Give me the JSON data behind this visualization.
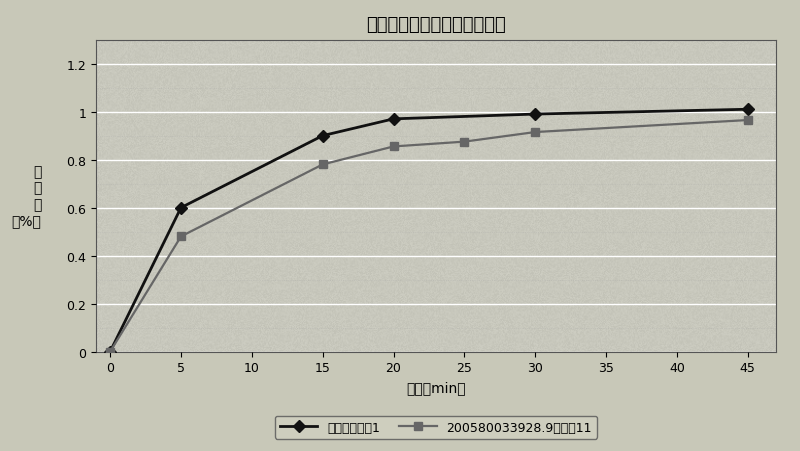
{
  "title": "苯磺酸氨氯地平溶出曲线比较",
  "xlabel": "时间（min）",
  "ylabel_chars": [
    "溶",
    "出",
    "量",
    "(%）"
  ],
  "ylabel": "溶\n出\n量\n（%）",
  "xlim": [
    -1,
    47
  ],
  "ylim": [
    0,
    1.3
  ],
  "yticks": [
    0,
    0.2,
    0.4,
    0.6,
    0.8,
    1.0,
    1.2
  ],
  "ytick_labels": [
    "0",
    "0.2",
    "0.4",
    "0.6",
    "0.8",
    "1",
    "1.2"
  ],
  "xticks": [
    0,
    5,
    10,
    15,
    20,
    25,
    30,
    35,
    40,
    45
  ],
  "series1": {
    "label": "本发明实施例1",
    "x": [
      0,
      5,
      15,
      20,
      30,
      45
    ],
    "y": [
      0.0,
      0.6,
      0.9,
      0.97,
      0.99,
      1.01
    ],
    "color": "#111111",
    "marker": "D",
    "markersize": 6,
    "linewidth": 2.0
  },
  "series2": {
    "label": "200580033928.9实施例11",
    "x": [
      0,
      5,
      15,
      20,
      25,
      30,
      45
    ],
    "y": [
      0.0,
      0.48,
      0.78,
      0.855,
      0.875,
      0.915,
      0.965
    ],
    "color": "#666666",
    "marker": "s",
    "markersize": 6,
    "linewidth": 1.6
  },
  "bg_color": "#c8c8b8",
  "plot_bg_color": "#c8c8b8",
  "grid_color": "#ffffff",
  "title_fontsize": 13,
  "label_fontsize": 10,
  "tick_fontsize": 9,
  "legend_fontsize": 9
}
